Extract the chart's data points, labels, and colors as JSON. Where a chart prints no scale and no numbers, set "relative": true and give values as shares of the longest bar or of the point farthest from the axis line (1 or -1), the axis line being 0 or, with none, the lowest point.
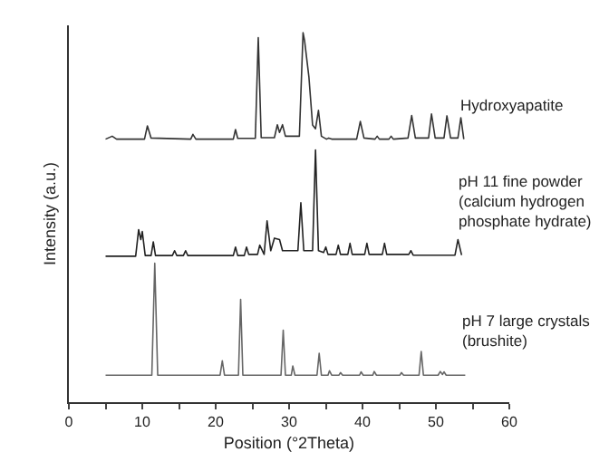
{
  "chart_data": {
    "type": "line",
    "relative": true,
    "xlabel": "Position (°2Theta)",
    "ylabel": "Intensity (a.u.)",
    "xlim": [
      0,
      60
    ],
    "xticks": [
      0,
      {
        "value": 5,
        "label": null
      },
      10,
      {
        "value": 15,
        "label": null
      },
      20,
      {
        "value": 25,
        "label": null
      },
      30,
      {
        "value": 35,
        "label": null
      },
      40,
      {
        "value": 45,
        "label": null
      },
      50,
      {
        "value": 55,
        "label": null
      },
      60
    ],
    "legend": false,
    "marker": "none",
    "line_style": "solid",
    "series": [
      {
        "name": "Hydroxyapatite",
        "color": "#333333",
        "x": [
          5,
          5.9,
          6.5,
          10.3,
          10.7,
          11.2,
          16.6,
          16.9,
          17.3,
          22.4,
          22.7,
          23,
          25.4,
          25.8,
          26.2,
          28,
          28.4,
          28.7,
          29.1,
          29.5,
          31.4,
          31.9,
          32.1,
          32.7,
          33.2,
          33.6,
          34,
          34.4,
          35.1,
          35.4,
          35.8,
          39.2,
          39.7,
          40.2,
          41.7,
          42,
          42.3,
          43.6,
          43.9,
          44.2,
          46.2,
          46.7,
          47.2,
          49,
          49.4,
          49.9,
          51.1,
          51.5,
          52,
          53,
          53.4,
          53.8
        ],
        "values": [
          0.712,
          0.72,
          0.712,
          0.712,
          0.748,
          0.715,
          0.712,
          0.725,
          0.712,
          0.712,
          0.738,
          0.714,
          0.714,
          0.987,
          0.716,
          0.716,
          0.751,
          0.73,
          0.751,
          0.72,
          0.72,
          1,
          0.98,
          0.88,
          0.75,
          0.74,
          0.79,
          0.72,
          0.712,
          0.715,
          0.712,
          0.712,
          0.76,
          0.715,
          0.712,
          0.72,
          0.712,
          0.712,
          0.72,
          0.712,
          0.715,
          0.776,
          0.715,
          0.715,
          0.78,
          0.715,
          0.715,
          0.775,
          0.715,
          0.715,
          0.77,
          0.712
        ]
      },
      {
        "name": "pH 11 fine powder (calcium hydrogen phosphate hydrate)",
        "color": "#222222",
        "x": [
          5,
          9.1,
          9.5,
          9.8,
          10,
          10.4,
          11.2,
          11.5,
          11.8,
          14.1,
          14.4,
          14.7,
          15.6,
          15.9,
          16.2,
          22.4,
          22.7,
          23,
          23.9,
          24.2,
          24.5,
          25.7,
          26,
          26.6,
          27,
          27.5,
          28,
          28.7,
          29.1,
          31.2,
          31.6,
          32,
          33.2,
          33.6,
          34,
          34.7,
          35,
          35.3,
          36.4,
          36.7,
          37,
          38,
          38.3,
          38.6,
          40.3,
          40.6,
          40.9,
          42.7,
          43,
          43.3,
          46.3,
          46.6,
          46.9,
          52.6,
          53,
          53.5
        ],
        "values": [
          0.395,
          0.395,
          0.467,
          0.44,
          0.462,
          0.397,
          0.397,
          0.434,
          0.397,
          0.397,
          0.41,
          0.397,
          0.397,
          0.41,
          0.397,
          0.397,
          0.42,
          0.397,
          0.397,
          0.42,
          0.4,
          0.4,
          0.425,
          0.4,
          0.491,
          0.41,
          0.444,
          0.44,
          0.41,
          0.41,
          0.54,
          0.41,
          0.41,
          0.683,
          0.41,
          0.405,
          0.42,
          0.4,
          0.4,
          0.425,
          0.4,
          0.4,
          0.43,
          0.4,
          0.4,
          0.43,
          0.4,
          0.4,
          0.43,
          0.4,
          0.4,
          0.41,
          0.398,
          0.398,
          0.44,
          0.398
        ]
      },
      {
        "name": "pH 7 large crystals (brushite)",
        "color": "#666666",
        "x": [
          5,
          11.3,
          11.7,
          12.1,
          20.6,
          20.9,
          21.2,
          23.1,
          23.4,
          23.7,
          28.9,
          29.2,
          29.5,
          30.3,
          30.5,
          30.8,
          33.8,
          34.1,
          34.4,
          35.3,
          35.5,
          35.8,
          36.8,
          37,
          37.3,
          39.6,
          39.8,
          40.1,
          41.4,
          41.6,
          41.9,
          45.1,
          45.3,
          45.6,
          47.7,
          48,
          48.3,
          50.3,
          50.6,
          50.9,
          51.1,
          51.4,
          54
        ],
        "values": [
          0.073,
          0.073,
          0.376,
          0.073,
          0.073,
          0.112,
          0.073,
          0.073,
          0.278,
          0.073,
          0.073,
          0.195,
          0.073,
          0.073,
          0.098,
          0.073,
          0.073,
          0.132,
          0.073,
          0.073,
          0.085,
          0.073,
          0.073,
          0.08,
          0.073,
          0.073,
          0.082,
          0.073,
          0.073,
          0.083,
          0.073,
          0.073,
          0.08,
          0.073,
          0.073,
          0.137,
          0.073,
          0.073,
          0.083,
          0.075,
          0.082,
          0.073,
          0.073
        ]
      }
    ]
  }
}
